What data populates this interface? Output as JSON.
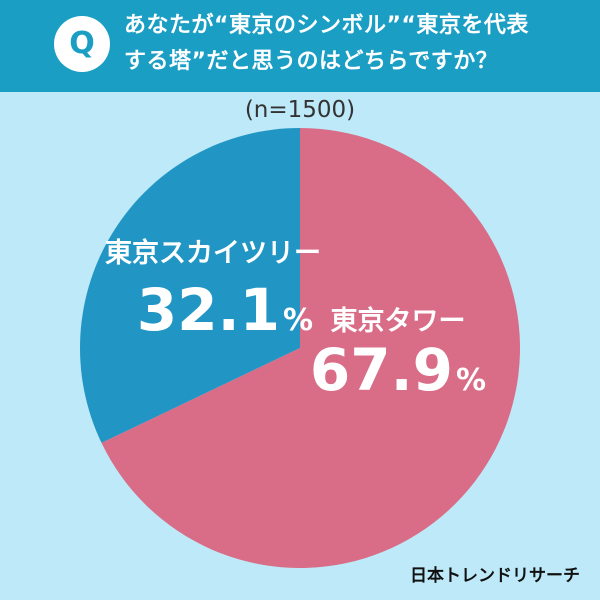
{
  "header": {
    "badge": "Q",
    "question_line1": "あなたが“東京のシンボル”“東京を代表",
    "question_line2": "する塔”だと思うのはどちらですか？"
  },
  "sample_size": "(n=1500)",
  "colors": {
    "header": "#1b9ec4",
    "background": "#bde9f8",
    "skytree": "#2196c4",
    "tower": "#d96c86"
  },
  "chart_data": {
    "type": "pie",
    "title": "",
    "slices": [
      {
        "label": "東京スカイツリー",
        "value": 32.1,
        "display": "32.1",
        "unit": "%"
      },
      {
        "label": "東京タワー",
        "value": 67.9,
        "display": "67.9",
        "unit": "%"
      }
    ]
  },
  "credit": "日本トレンドリサーチ"
}
